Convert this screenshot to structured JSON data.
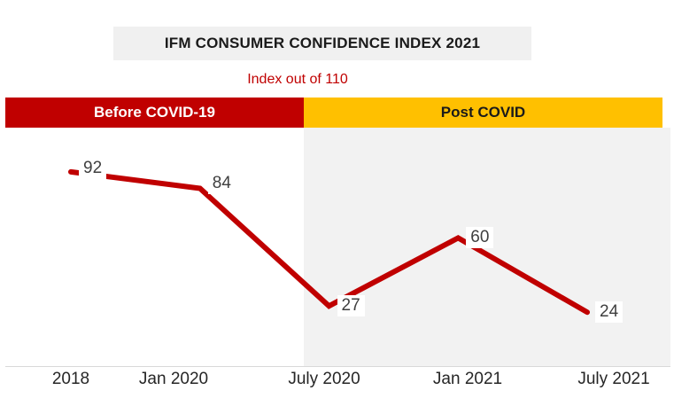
{
  "title": "IFM CONSUMER CONFIDENCE INDEX 2021",
  "subtitle": "Index out of 110",
  "banners": {
    "before_label": "Before COVID-19",
    "after_label": "Post COVID"
  },
  "chart_data": {
    "type": "line",
    "title": "IFM CONSUMER CONFIDENCE INDEX 2021",
    "subtitle": "Index out of 110",
    "categories": [
      "2018",
      "Jan 2020",
      "July 2020",
      "Jan 2021",
      "July 2021"
    ],
    "values": [
      92,
      84,
      27,
      60,
      24
    ],
    "series": [
      {
        "name": "IFM Consumer Confidence Index",
        "values": [
          92,
          84,
          27,
          60,
          24
        ]
      }
    ],
    "ylim": [
      0,
      110
    ],
    "grid": false,
    "legend": "none",
    "data_labels": true,
    "regions": [
      {
        "label": "Before COVID-19",
        "categories": [
          "2018",
          "Jan 2020"
        ]
      },
      {
        "label": "Post COVID",
        "categories": [
          "July 2020",
          "Jan 2021",
          "July 2021"
        ]
      }
    ]
  },
  "colors": {
    "line": "#C00000",
    "before_banner_bg": "#C00000",
    "before_banner_text": "#FFFFFF",
    "after_banner_bg": "#FFC000",
    "after_banner_text": "#1A1A1A",
    "subtitle_text": "#C00000",
    "title_box_bg": "#F0F0F0",
    "post_plot_bg": "#F2F2F2",
    "axis_line": "#D9D9D9",
    "data_label_text": "#3F3F3F",
    "axis_label_text": "#262626"
  }
}
